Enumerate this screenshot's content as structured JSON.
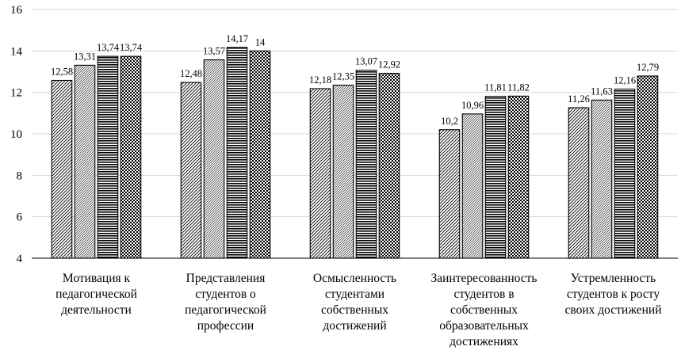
{
  "chart_data": {
    "type": "bar",
    "title": "",
    "xlabel": "",
    "ylabel": "",
    "ylim": [
      4,
      16
    ],
    "yticks": [
      4,
      6,
      8,
      10,
      12,
      14,
      16
    ],
    "grid": true,
    "legend": "none",
    "categories": [
      [
        "Мотивация к",
        "педагогической",
        "деятельности"
      ],
      [
        "Представления",
        "студентов о",
        "педагогической",
        "профессии"
      ],
      [
        "Осмысленность",
        "студентами",
        "собственных",
        "достижений"
      ],
      [
        "Заинтересованность",
        "студентов в",
        "собственных",
        "образовательных",
        "достижениях"
      ],
      [
        "Устремленность",
        "студентов к росту",
        "своих достижений"
      ]
    ],
    "series": [
      {
        "values": [
          12.58,
          12.48,
          12.18,
          10.2,
          11.26
        ],
        "labels": [
          "12,58",
          "12,48",
          "12,18",
          "10,2",
          "11,26"
        ],
        "pattern": "diag"
      },
      {
        "values": [
          13.31,
          13.57,
          12.35,
          10.96,
          11.63
        ],
        "labels": [
          "13,31",
          "13,57",
          "12,35",
          "10,96",
          "11,63"
        ],
        "pattern": "diag-dense"
      },
      {
        "values": [
          13.74,
          14.17,
          13.07,
          11.81,
          12.16
        ],
        "labels": [
          "13,74",
          "14,17",
          "13,07",
          "11,81",
          "12,16"
        ],
        "pattern": "horizontal"
      },
      {
        "values": [
          13.74,
          14,
          12.92,
          11.82,
          12.79
        ],
        "labels": [
          "13,74",
          "14",
          "12,92",
          "11,82",
          "12,79"
        ],
        "pattern": "checker"
      }
    ],
    "colors": {
      "grid": "#d9d9d9",
      "axis": "#000000",
      "bar_outline": "#000000"
    }
  }
}
